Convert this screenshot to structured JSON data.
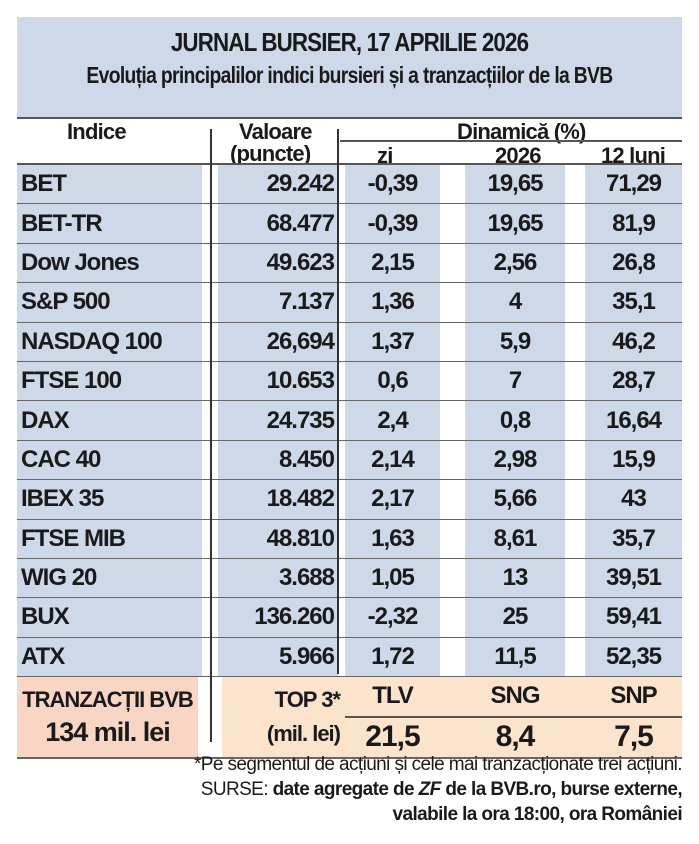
{
  "title": "JURNAL BURSIER, 17 APRILIE 2026",
  "subtitle": "Evoluția principalilor indici bursieri și a tranzacțiilor de la BVB",
  "headers": {
    "indice": "Indice",
    "valoare": "Valoare",
    "valoare_unit": "(puncte)",
    "dinamica": "Dinamică (%)",
    "zi": "zi",
    "year": "2026",
    "luni": "12 luni"
  },
  "rows": [
    [
      "BET",
      "29.242",
      "-0,39",
      "19,65",
      "71,29"
    ],
    [
      "BET-TR",
      "68.477",
      "-0,39",
      "19,65",
      "81,9"
    ],
    [
      "Dow Jones",
      "49.623",
      "2,15",
      "2,56",
      "26,8"
    ],
    [
      "S&P 500",
      "7.137",
      "1,36",
      "4",
      "35,1"
    ],
    [
      "NASDAQ 100",
      "26,694",
      "1,37",
      "5,9",
      "46,2"
    ],
    [
      "FTSE 100",
      "10.653",
      "0,6",
      "7",
      "28,7"
    ],
    [
      "DAX",
      "24.735",
      "2,4",
      "0,8",
      "16,64"
    ],
    [
      "CAC 40",
      "8.450",
      "2,14",
      "2,98",
      "15,9"
    ],
    [
      "IBEX 35",
      "18.482",
      "2,17",
      "5,66",
      "43"
    ],
    [
      "FTSE MIB",
      "48.810",
      "1,63",
      "8,61",
      "35,7"
    ],
    [
      "WIG 20",
      "3.688",
      "1,05",
      "13",
      "39,51"
    ],
    [
      "BUX",
      "136.260",
      "-2,32",
      "25",
      "59,41"
    ],
    [
      "ATX",
      "5.966",
      "1,72",
      "11,5",
      "52,35"
    ]
  ],
  "bvb": {
    "label": "TRANZACȚII BVB",
    "total": "134 mil. lei",
    "top_label": "TOP 3*",
    "top_unit": "(mil. lei)",
    "top": [
      {
        "symbol": "TLV",
        "value": "21,5"
      },
      {
        "symbol": "SNG",
        "value": "8,4"
      },
      {
        "symbol": "SNP",
        "value": "7,5"
      }
    ]
  },
  "footer": {
    "note": "*Pe segmentul de acțiuni și cele mai tranzacționate trei acțiuni.",
    "sources_label": "SURSE:",
    "sources_a": "date agregate de",
    "sources_zf": "ZF",
    "sources_b": "de la BVB.ro, burse externe,",
    "sources_c": "valabile la ora 18:00, ora României"
  },
  "colors": {
    "blue": "#cdd9e8",
    "peach": "#fbe3cc",
    "salmon": "#f9d6c4"
  }
}
